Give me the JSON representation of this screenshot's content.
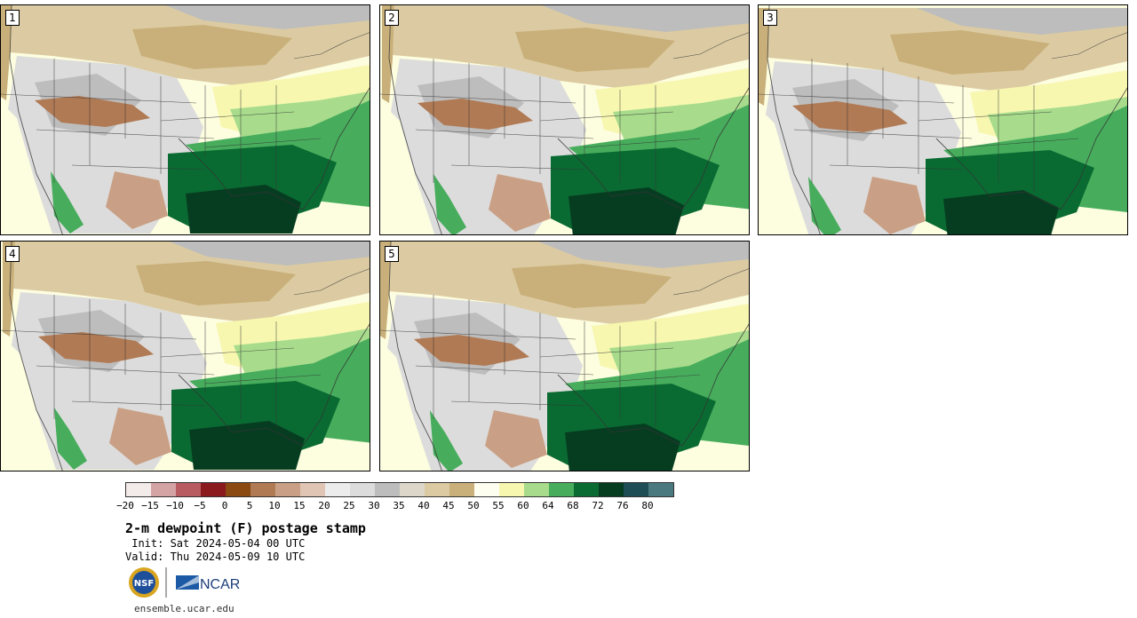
{
  "panels": [
    {
      "label": "1"
    },
    {
      "label": "2"
    },
    {
      "label": "3"
    },
    {
      "label": "4"
    },
    {
      "label": "5"
    }
  ],
  "colorbar": {
    "colors": [
      "#f3ebea",
      "#d4a3a4",
      "#b85c62",
      "#8b1a1f",
      "#8a4a12",
      "#b07a54",
      "#c9a085",
      "#e0c5b5",
      "#ececec",
      "#dcdcdc",
      "#bdbdbd",
      "#dcd7c8",
      "#dccba2",
      "#c9b07a",
      "#fdfdf0",
      "#f7f7b0",
      "#a8dc8c",
      "#47ad5c",
      "#0a6b32",
      "#063d21",
      "#1f4d55",
      "#4a7a80"
    ],
    "ticks": [
      "−20",
      "−15",
      "−10",
      "−5",
      "0",
      "5",
      "10",
      "15",
      "20",
      "25",
      "30",
      "35",
      "40",
      "45",
      "50",
      "55",
      "60",
      "64",
      "68",
      "72",
      "76",
      "80"
    ]
  },
  "title": "2-m dewpoint (F) postage stamp",
  "init_line": " Init: Sat 2024-05-04 00 UTC",
  "valid_line": "Valid: Thu 2024-05-09 10 UTC",
  "logos": {
    "nsf": "NSF",
    "ncar": "NCAR"
  },
  "url": "ensemble.ucar.edu"
}
